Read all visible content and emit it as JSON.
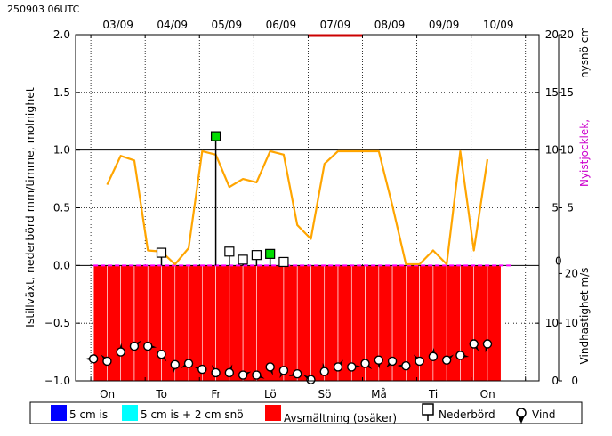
{
  "header": {
    "run_label": "250903 06UTC"
  },
  "axes": {
    "left_label": "Istillväxt, nederbörd mm/timme, molnighet",
    "right_upper_label_a": "nysnö cm",
    "right_upper_label_b": "Nyistjocklek,",
    "right_lower_label": "Vindhastighet m/s",
    "left_ticks": [
      "2.0",
      "1.5",
      "1.0",
      "0.5",
      "0.0",
      "−0.5",
      "−1.0"
    ],
    "right_upper_ticks_outer": [
      "20",
      "15",
      "10",
      "5",
      "0"
    ],
    "right_upper_ticks_inner": [
      "20",
      "15",
      "10",
      "5"
    ],
    "right_lower_ticks_outer": [
      "20",
      "10",
      "0"
    ],
    "right_lower_ticks_inner": [
      "10",
      "0"
    ],
    "top_dates": [
      "03/09",
      "04/09",
      "05/09",
      "06/09",
      "07/09",
      "08/09",
      "09/09",
      "10/09"
    ],
    "bottom_days": [
      "On",
      "To",
      "Fr",
      "Lö",
      "Sö",
      "Må",
      "Ti",
      "On"
    ]
  },
  "legend": {
    "items": [
      {
        "label": "5 cm is",
        "color": "#0000ff",
        "icon": "blue-square"
      },
      {
        "label": "5 cm is + 2 cm snö",
        "color": "#00ffff",
        "icon": "cyan-square"
      },
      {
        "label": "Avsmältning (osäker)",
        "color": "#ff0000",
        "icon": "red-square"
      },
      {
        "label": "Nederbörd",
        "icon": "precip-marker-icon"
      },
      {
        "label": "Vind",
        "icon": "wind-marker-icon"
      }
    ]
  },
  "colors": {
    "cloud_line": "#ffa500",
    "melt_bar": "#ff0000",
    "snow_marker": "#00dd00",
    "ice_zero_line": "#ff00ff",
    "right_upper_label_b": "#cc00cc",
    "red_top_mark": "#cc0000"
  },
  "chart_data": {
    "type": "line",
    "x_unit": "days since 03/09 00UTC",
    "xlim": [
      -0.28,
      8.25
    ],
    "ylim": [
      -1.0,
      2.0
    ],
    "cloud_cover": {
      "x": [
        0.3,
        0.55,
        0.8,
        1.05,
        1.3,
        1.55,
        1.8,
        2.05,
        2.3,
        2.55,
        2.8,
        3.05,
        3.3,
        3.55,
        3.8,
        4.05,
        4.3,
        4.55,
        4.8,
        5.05,
        5.3,
        5.55,
        5.8,
        6.05,
        6.3,
        6.55,
        6.8,
        7.05,
        7.3,
        7.55
      ],
      "y": [
        0.7,
        0.95,
        0.91,
        0.13,
        0.12,
        0.01,
        0.15,
        0.99,
        0.96,
        0.68,
        0.75,
        0.72,
        0.99,
        0.96,
        0.35,
        0.23,
        0.88,
        0.99,
        0.99,
        0.99,
        0.99,
        0.52,
        0.01,
        0.01,
        0.13,
        0.01,
        0.99,
        0.13,
        0.92,
        null
      ]
    },
    "precipitation": {
      "x": [
        1.3,
        2.3,
        2.55,
        2.8,
        3.05,
        3.3,
        3.55
      ],
      "y": [
        0.11,
        1.12,
        0.12,
        0.05,
        0.09,
        0.1,
        0.03
      ],
      "snow": [
        false,
        true,
        false,
        false,
        false,
        true,
        false
      ]
    },
    "melt_bars": {
      "x_start": 0.05,
      "x_end": 7.55,
      "step": 0.25,
      "value": -1.0
    },
    "wind": {
      "x": [
        0.05,
        0.3,
        0.55,
        0.8,
        1.05,
        1.3,
        1.55,
        1.8,
        2.05,
        2.3,
        2.55,
        2.8,
        3.05,
        3.3,
        3.55,
        3.8,
        4.05,
        4.3,
        4.55,
        4.8,
        5.05,
        5.3,
        5.55,
        5.8,
        6.05,
        6.3,
        6.55,
        6.8,
        7.05,
        7.3,
        7.55
      ],
      "y": [
        -0.81,
        -0.83,
        -0.75,
        -0.7,
        -0.7,
        -0.77,
        -0.86,
        -0.85,
        -0.9,
        -0.93,
        -0.93,
        -0.95,
        -0.95,
        -0.88,
        -0.91,
        -0.94,
        -0.99,
        -0.92,
        -0.88,
        -0.88,
        -0.85,
        -0.82,
        -0.83,
        -0.87,
        -0.83,
        -0.79,
        -0.82,
        -0.78,
        -0.68,
        -0.68,
        null
      ]
    },
    "red_top_mark": {
      "x_start": 4.0,
      "x_end": 5.0,
      "y": 2.0
    }
  }
}
